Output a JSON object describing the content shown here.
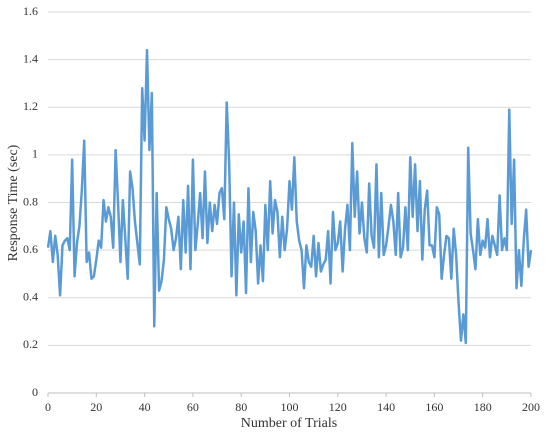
{
  "chart_data": {
    "type": "line",
    "x_label": "Number of Trials",
    "y_label": "Response Time (sec)",
    "x": [
      0,
      1,
      2,
      3,
      4,
      5,
      6,
      7,
      8,
      9,
      10,
      11,
      12,
      13,
      14,
      15,
      16,
      17,
      18,
      19,
      20,
      21,
      22,
      23,
      24,
      25,
      26,
      27,
      28,
      29,
      30,
      31,
      32,
      33,
      34,
      35,
      36,
      37,
      38,
      39,
      40,
      41,
      42,
      43,
      44,
      45,
      46,
      47,
      48,
      49,
      50,
      51,
      52,
      53,
      54,
      55,
      56,
      57,
      58,
      59,
      60,
      61,
      62,
      63,
      64,
      65,
      66,
      67,
      68,
      69,
      70,
      71,
      72,
      73,
      74,
      75,
      76,
      77,
      78,
      79,
      80,
      81,
      82,
      83,
      84,
      85,
      86,
      87,
      88,
      89,
      90,
      91,
      92,
      93,
      94,
      95,
      96,
      97,
      98,
      99,
      100,
      101,
      102,
      103,
      104,
      105,
      106,
      107,
      108,
      109,
      110,
      111,
      112,
      113,
      114,
      115,
      116,
      117,
      118,
      119,
      120,
      121,
      122,
      123,
      124,
      125,
      126,
      127,
      128,
      129,
      130,
      131,
      132,
      133,
      134,
      135,
      136,
      137,
      138,
      139,
      140,
      141,
      142,
      143,
      144,
      145,
      146,
      147,
      148,
      149,
      150,
      151,
      152,
      153,
      154,
      155,
      156,
      157,
      158,
      159,
      160,
      161,
      162,
      163,
      164,
      165,
      166,
      167,
      168,
      169,
      170,
      171,
      172,
      173,
      174,
      175,
      176,
      177,
      178,
      179,
      180,
      181,
      182,
      183,
      184,
      185,
      186,
      187,
      188,
      189,
      190,
      191,
      192,
      193,
      194,
      195,
      196,
      197,
      198,
      199,
      200
    ],
    "series": [
      {
        "name": "Response Time",
        "color": "#5b9bd5",
        "values": [
          0.61,
          0.68,
          0.55,
          0.66,
          0.58,
          0.41,
          0.62,
          0.64,
          0.65,
          0.6,
          0.98,
          0.49,
          0.63,
          0.7,
          0.85,
          1.06,
          0.55,
          0.59,
          0.48,
          0.49,
          0.56,
          0.64,
          0.61,
          0.81,
          0.72,
          0.78,
          0.74,
          0.61,
          1.02,
          0.8,
          0.55,
          0.81,
          0.65,
          0.48,
          0.93,
          0.86,
          0.72,
          0.63,
          0.54,
          1.28,
          1.06,
          1.44,
          1.02,
          1.26,
          0.28,
          0.84,
          0.43,
          0.47,
          0.56,
          0.78,
          0.73,
          0.69,
          0.6,
          0.65,
          0.74,
          0.52,
          0.81,
          0.59,
          0.87,
          0.52,
          0.98,
          0.6,
          0.71,
          0.84,
          0.65,
          0.93,
          0.63,
          0.8,
          0.68,
          0.79,
          0.71,
          0.84,
          0.86,
          0.73,
          1.22,
          0.97,
          0.49,
          0.8,
          0.41,
          0.75,
          0.59,
          0.72,
          0.42,
          0.86,
          0.55,
          0.76,
          0.68,
          0.46,
          0.62,
          0.47,
          0.79,
          0.6,
          0.89,
          0.67,
          0.81,
          0.76,
          0.57,
          0.74,
          0.6,
          0.69,
          0.89,
          0.77,
          0.99,
          0.72,
          0.64,
          0.6,
          0.44,
          0.62,
          0.55,
          0.53,
          0.66,
          0.49,
          0.63,
          0.51,
          0.54,
          0.56,
          0.68,
          0.46,
          0.76,
          0.6,
          0.63,
          0.72,
          0.51,
          0.69,
          0.79,
          0.6,
          1.05,
          0.74,
          0.93,
          0.67,
          0.8,
          0.65,
          0.59,
          0.88,
          0.66,
          0.61,
          0.96,
          0.57,
          0.84,
          0.58,
          0.62,
          0.7,
          0.79,
          0.72,
          0.58,
          0.84,
          0.57,
          0.61,
          0.78,
          0.6,
          0.99,
          0.74,
          0.96,
          0.68,
          0.89,
          0.56,
          0.77,
          0.85,
          0.62,
          0.62,
          0.57,
          0.78,
          0.75,
          0.48,
          0.58,
          0.66,
          0.65,
          0.48,
          0.69,
          0.58,
          0.38,
          0.22,
          0.33,
          0.21,
          1.03,
          0.67,
          0.6,
          0.52,
          0.73,
          0.58,
          0.64,
          0.61,
          0.73,
          0.57,
          0.66,
          0.62,
          0.58,
          0.83,
          0.6,
          0.65,
          0.6,
          1.19,
          0.71,
          0.98,
          0.44,
          0.6,
          0.45,
          0.64,
          0.77,
          0.53,
          0.6
        ]
      }
    ],
    "xlim": [
      0,
      200
    ],
    "xticks": [
      0,
      20,
      40,
      60,
      80,
      100,
      120,
      140,
      160,
      180,
      200
    ],
    "ylim": [
      0,
      1.6
    ],
    "yticks": [
      0,
      0.2,
      0.4,
      0.6,
      0.8,
      1,
      1.2,
      1.4,
      1.6
    ],
    "grid": true
  }
}
